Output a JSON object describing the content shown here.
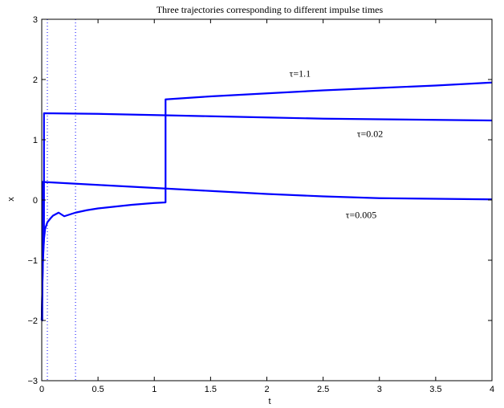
{
  "chart_data": {
    "type": "line",
    "title": "Three trajectories corresponding to different impulse times",
    "xlabel": "t",
    "ylabel": "x",
    "xlim": [
      0,
      4
    ],
    "ylim": [
      -3,
      3
    ],
    "xticks": [
      0,
      0.5,
      1,
      1.5,
      2,
      2.5,
      3,
      3.5,
      4
    ],
    "xtick_labels": [
      "0",
      "0.5",
      "1",
      "1.5",
      "2",
      "2.5",
      "3",
      "3.5",
      "4"
    ],
    "yticks": [
      -3,
      -2,
      -1,
      0,
      1,
      2,
      3
    ],
    "ytick_labels": [
      "−3",
      "−2",
      "−1",
      "0",
      "1",
      "2",
      "3"
    ],
    "grid": false,
    "line_color": "#0000ff",
    "vertical_reference_lines": [
      0.05,
      0.3
    ],
    "series": [
      {
        "x": [
          0,
          0.005,
          0.005,
          0.5,
          1.0,
          1.5,
          2.0,
          2.5,
          3.0,
          3.5,
          4.0
        ],
        "y": [
          -2.0,
          -2.0,
          0.3,
          0.25,
          0.2,
          0.15,
          0.1,
          0.06,
          0.03,
          0.02,
          0.01
        ]
      },
      {
        "x": [
          0,
          0.005,
          0.01,
          0.015,
          0.02,
          0.02,
          0.5,
          1.0,
          1.5,
          2.0,
          2.5,
          3.0,
          3.5,
          4.0
        ],
        "y": [
          -2.0,
          -1.5,
          -1.05,
          -0.8,
          -0.65,
          1.44,
          1.43,
          1.41,
          1.39,
          1.37,
          1.35,
          1.34,
          1.33,
          1.32
        ]
      },
      {
        "x": [
          0,
          0.005,
          0.01,
          0.02,
          0.03,
          0.05,
          0.08,
          0.1,
          0.15,
          0.2,
          0.3,
          0.4,
          0.5,
          0.6,
          0.7,
          0.8,
          0.9,
          1.0,
          1.1,
          1.1,
          1.5,
          2.0,
          2.5,
          3.0,
          3.5,
          4.0
        ],
        "y": [
          -2.0,
          -1.5,
          -1.05,
          -0.65,
          -0.48,
          -0.37,
          -0.3,
          -0.26,
          -0.21,
          -0.27,
          -0.21,
          -0.17,
          -0.14,
          -0.12,
          -0.1,
          -0.08,
          -0.065,
          -0.05,
          -0.04,
          1.67,
          1.72,
          1.77,
          1.82,
          1.86,
          1.9,
          1.95
        ]
      }
    ],
    "annotations": [
      {
        "text": "τ=1.1",
        "x": 2.2,
        "y": 2.05
      },
      {
        "text": "τ=0.02",
        "x": 2.8,
        "y": 1.05
      },
      {
        "text": "τ=0.005",
        "x": 2.7,
        "y": -0.3
      }
    ]
  }
}
